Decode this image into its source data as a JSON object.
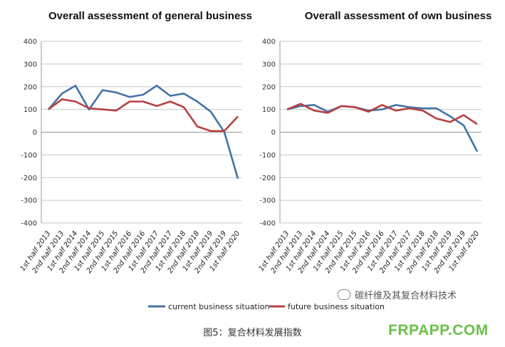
{
  "chart_data": [
    {
      "type": "line",
      "title": "Overall assessment of general business",
      "categories": [
        "1st half 2013",
        "2nd half 2013",
        "1st half 2014",
        "2nd half 2014",
        "1st half 2015",
        "2nd half 2015",
        "1st half 2016",
        "2nd half 2016",
        "1st half 2017",
        "2nd half 2017",
        "1st half 2018",
        "2nd half 2018",
        "1st half 2019",
        "2nd half 2019",
        "1st half 2020"
      ],
      "ylim": [
        -400,
        400
      ],
      "yticks": [
        "400",
        "300",
        "200",
        "100",
        "0",
        "-100",
        "-200",
        "-300",
        "-400"
      ],
      "grid": true,
      "series": [
        {
          "name": "current business situation",
          "color": "#4472a8",
          "values": [
            100,
            170,
            205,
            100,
            185,
            175,
            155,
            165,
            205,
            160,
            170,
            135,
            90,
            0,
            -205
          ]
        },
        {
          "name": "future business situation",
          "color": "#b84040",
          "values": [
            100,
            145,
            135,
            105,
            100,
            95,
            135,
            135,
            115,
            135,
            110,
            25,
            5,
            5,
            70
          ]
        }
      ]
    },
    {
      "type": "line",
      "title": "Overall assessment of own business",
      "categories": [
        "1st half 2013",
        "2nd half 2013",
        "1st half 2014",
        "2nd half 2014",
        "1st half 2015",
        "2nd half 2015",
        "1st half 2016",
        "2nd half 2016",
        "1st half 2017",
        "2nd half 2017",
        "1st half 2018",
        "2nd half 2018",
        "1st half 2019",
        "2nd half 2019",
        "1st half 2020"
      ],
      "ylim": [
        -400,
        400
      ],
      "yticks": [
        "400",
        "300",
        "200",
        "100",
        "0",
        "-100",
        "-200",
        "-300",
        "-400"
      ],
      "grid": true,
      "series": [
        {
          "name": "current business situation",
          "color": "#4472a8",
          "values": [
            100,
            115,
            120,
            90,
            115,
            110,
            95,
            100,
            120,
            110,
            105,
            105,
            70,
            30,
            -85
          ]
        },
        {
          "name": "future business situation",
          "color": "#b84040",
          "values": [
            100,
            125,
            95,
            85,
            115,
            110,
            90,
            120,
            95,
            105,
            95,
            60,
            45,
            75,
            35
          ]
        }
      ]
    }
  ],
  "legend": {
    "placement": "bottom",
    "items": [
      {
        "label": "current business situation",
        "color": "#4472a8"
      },
      {
        "label": "future business situation",
        "color": "#b84040"
      }
    ]
  },
  "watermark_text": "碳纤维及其复合材料技术",
  "caption": "图5：复合材料发展指数",
  "site_logo": "FRPAPP.COM"
}
